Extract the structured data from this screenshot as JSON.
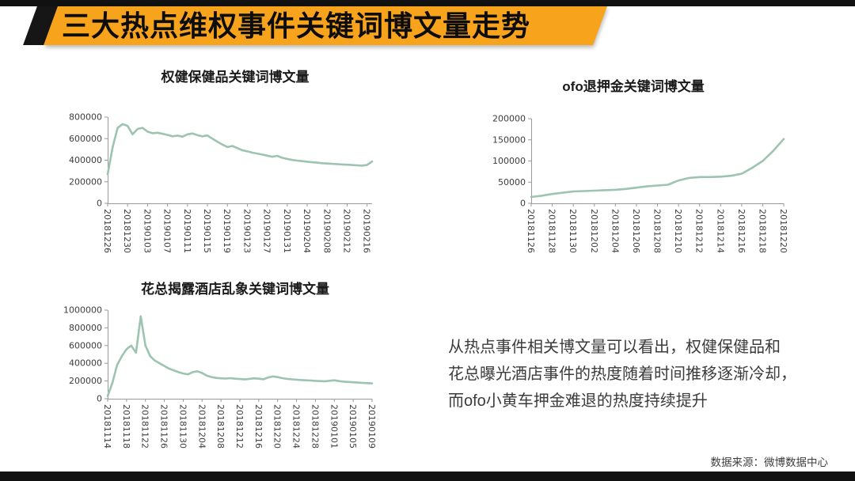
{
  "page": {
    "top_title": "三大热点维权事件关键词博文量走势",
    "source_note": "数据来源：微博数据中心",
    "colors": {
      "banner_orange": "#F7A31C",
      "banner_black": "#161616",
      "line": "#9DC3B1",
      "axis": "#9A9A9A",
      "tick_text": "#3D3D3D"
    }
  },
  "summary": {
    "lines": [
      "从热点事件相关博文量可以看出，权健保健品和",
      "花总曝光酒店事件的热度随着时间推移逐渐冷却，",
      "而ofo小黄车押金难退的热度持续提升"
    ]
  },
  "chart_data": [
    {
      "type": "line",
      "title": "权健保健品关键词博文量",
      "ylabel": "",
      "ylim": [
        0,
        800000
      ],
      "yticks": [
        0,
        200000,
        400000,
        600000,
        800000
      ],
      "x_labels": [
        "20181226",
        "20181230",
        "20190103",
        "20190107",
        "20190111",
        "20190115",
        "20190119",
        "20190123",
        "20190127",
        "20190131",
        "20190204",
        "20190208",
        "20190212",
        "20190216"
      ],
      "label_step": 4,
      "values": [
        270000,
        520000,
        700000,
        735000,
        718000,
        640000,
        690000,
        700000,
        665000,
        650000,
        655000,
        645000,
        635000,
        622000,
        628000,
        618000,
        640000,
        648000,
        632000,
        622000,
        630000,
        600000,
        572000,
        545000,
        522000,
        532000,
        512000,
        492000,
        482000,
        470000,
        462000,
        452000,
        442000,
        432000,
        440000,
        422000,
        412000,
        402000,
        396000,
        391000,
        386000,
        381000,
        377000,
        372000,
        369000,
        366000,
        363000,
        360000,
        358000,
        355000,
        352000,
        350000,
        356000,
        388000
      ]
    },
    {
      "type": "line",
      "title": "ofo退押金关键词博文量",
      "ylabel": "",
      "ylim": [
        0,
        200000
      ],
      "yticks": [
        0,
        50000,
        100000,
        150000,
        200000
      ],
      "x_labels": [
        "20181126",
        "20181128",
        "20181130",
        "20181202",
        "20181204",
        "20181206",
        "20181208",
        "20181210",
        "20181212",
        "20181214",
        "20181216",
        "20181218",
        "20181220"
      ],
      "label_step": 2,
      "values": [
        15000,
        18000,
        22000,
        25000,
        28000,
        29000,
        30000,
        31000,
        32000,
        34000,
        37000,
        40000,
        42000,
        44000,
        54000,
        60000,
        62000,
        62000,
        63000,
        65000,
        70000,
        84000,
        100000,
        124000,
        152000
      ]
    },
    {
      "type": "line",
      "title": "花总揭露酒店乱象关键词博文量",
      "ylabel": "",
      "ylim": [
        0,
        1000000
      ],
      "yticks": [
        0,
        200000,
        400000,
        600000,
        800000,
        1000000
      ],
      "x_labels": [
        "20181114",
        "20181118",
        "20181122",
        "20181126",
        "20181130",
        "20181204",
        "20181208",
        "20181212",
        "20181216",
        "20181220",
        "20181224",
        "20181228",
        "20190101",
        "20190105",
        "20190109"
      ],
      "label_step": 4,
      "values": [
        30000,
        180000,
        380000,
        480000,
        560000,
        600000,
        520000,
        930000,
        600000,
        480000,
        430000,
        400000,
        370000,
        340000,
        320000,
        300000,
        285000,
        275000,
        300000,
        310000,
        290000,
        260000,
        245000,
        235000,
        230000,
        228000,
        232000,
        226000,
        222000,
        218000,
        224000,
        230000,
        226000,
        220000,
        240000,
        252000,
        244000,
        232000,
        224000,
        219000,
        215000,
        211000,
        208000,
        205000,
        202000,
        199000,
        197000,
        203000,
        208000,
        199000,
        193000,
        189000,
        186000,
        182000,
        179000,
        176000,
        173000
      ]
    }
  ]
}
